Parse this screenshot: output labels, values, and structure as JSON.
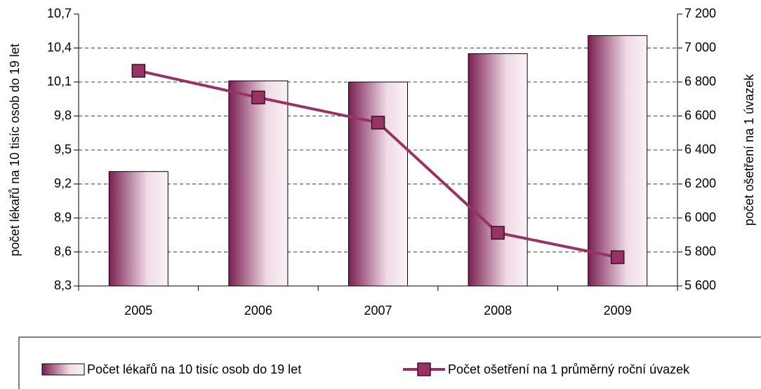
{
  "chart_data": {
    "type": "bar-line",
    "categories": [
      "2005",
      "2006",
      "2007",
      "2008",
      "2009"
    ],
    "ylabel": "počet lékařů na 10 tisíc osob do 19 let",
    "y2label": "počet ošetření na 1 úvazek",
    "ylim": [
      8.3,
      10.7
    ],
    "yticks": [
      {
        "value": 8.3,
        "label": "8,3"
      },
      {
        "value": 8.6,
        "label": "8,6"
      },
      {
        "value": 8.9,
        "label": "8,9"
      },
      {
        "value": 9.2,
        "label": "9,2"
      },
      {
        "value": 9.5,
        "label": "9,5"
      },
      {
        "value": 9.8,
        "label": "9,8"
      },
      {
        "value": 10.1,
        "label": "10,1"
      },
      {
        "value": 10.4,
        "label": "10,4"
      },
      {
        "value": 10.7,
        "label": "10,7"
      }
    ],
    "y2lim": [
      5600,
      7200
    ],
    "y2ticks": [
      {
        "value": 5600,
        "label": "5 600"
      },
      {
        "value": 5800,
        "label": "5 800"
      },
      {
        "value": 6000,
        "label": "6 000"
      },
      {
        "value": 6200,
        "label": "6 200"
      },
      {
        "value": 6400,
        "label": "6 400"
      },
      {
        "value": 6600,
        "label": "6 600"
      },
      {
        "value": 6800,
        "label": "6 800"
      },
      {
        "value": 7000,
        "label": "7 000"
      },
      {
        "value": 7200,
        "label": "7 200"
      }
    ],
    "grid": true,
    "legend": "bottom",
    "series": [
      {
        "name": "Počet lékařů na 10 tisíc osob do 19 let",
        "type": "bar",
        "color": "#7a1f52",
        "values": [
          9.31,
          10.11,
          10.1,
          10.35,
          10.51
        ]
      },
      {
        "name": "Počet ošetření na 1 průměrný roční úvazek",
        "type": "line",
        "axis": "y2",
        "color": "#993366",
        "values": [
          6866,
          6709,
          6561,
          5913,
          5769
        ]
      }
    ]
  }
}
